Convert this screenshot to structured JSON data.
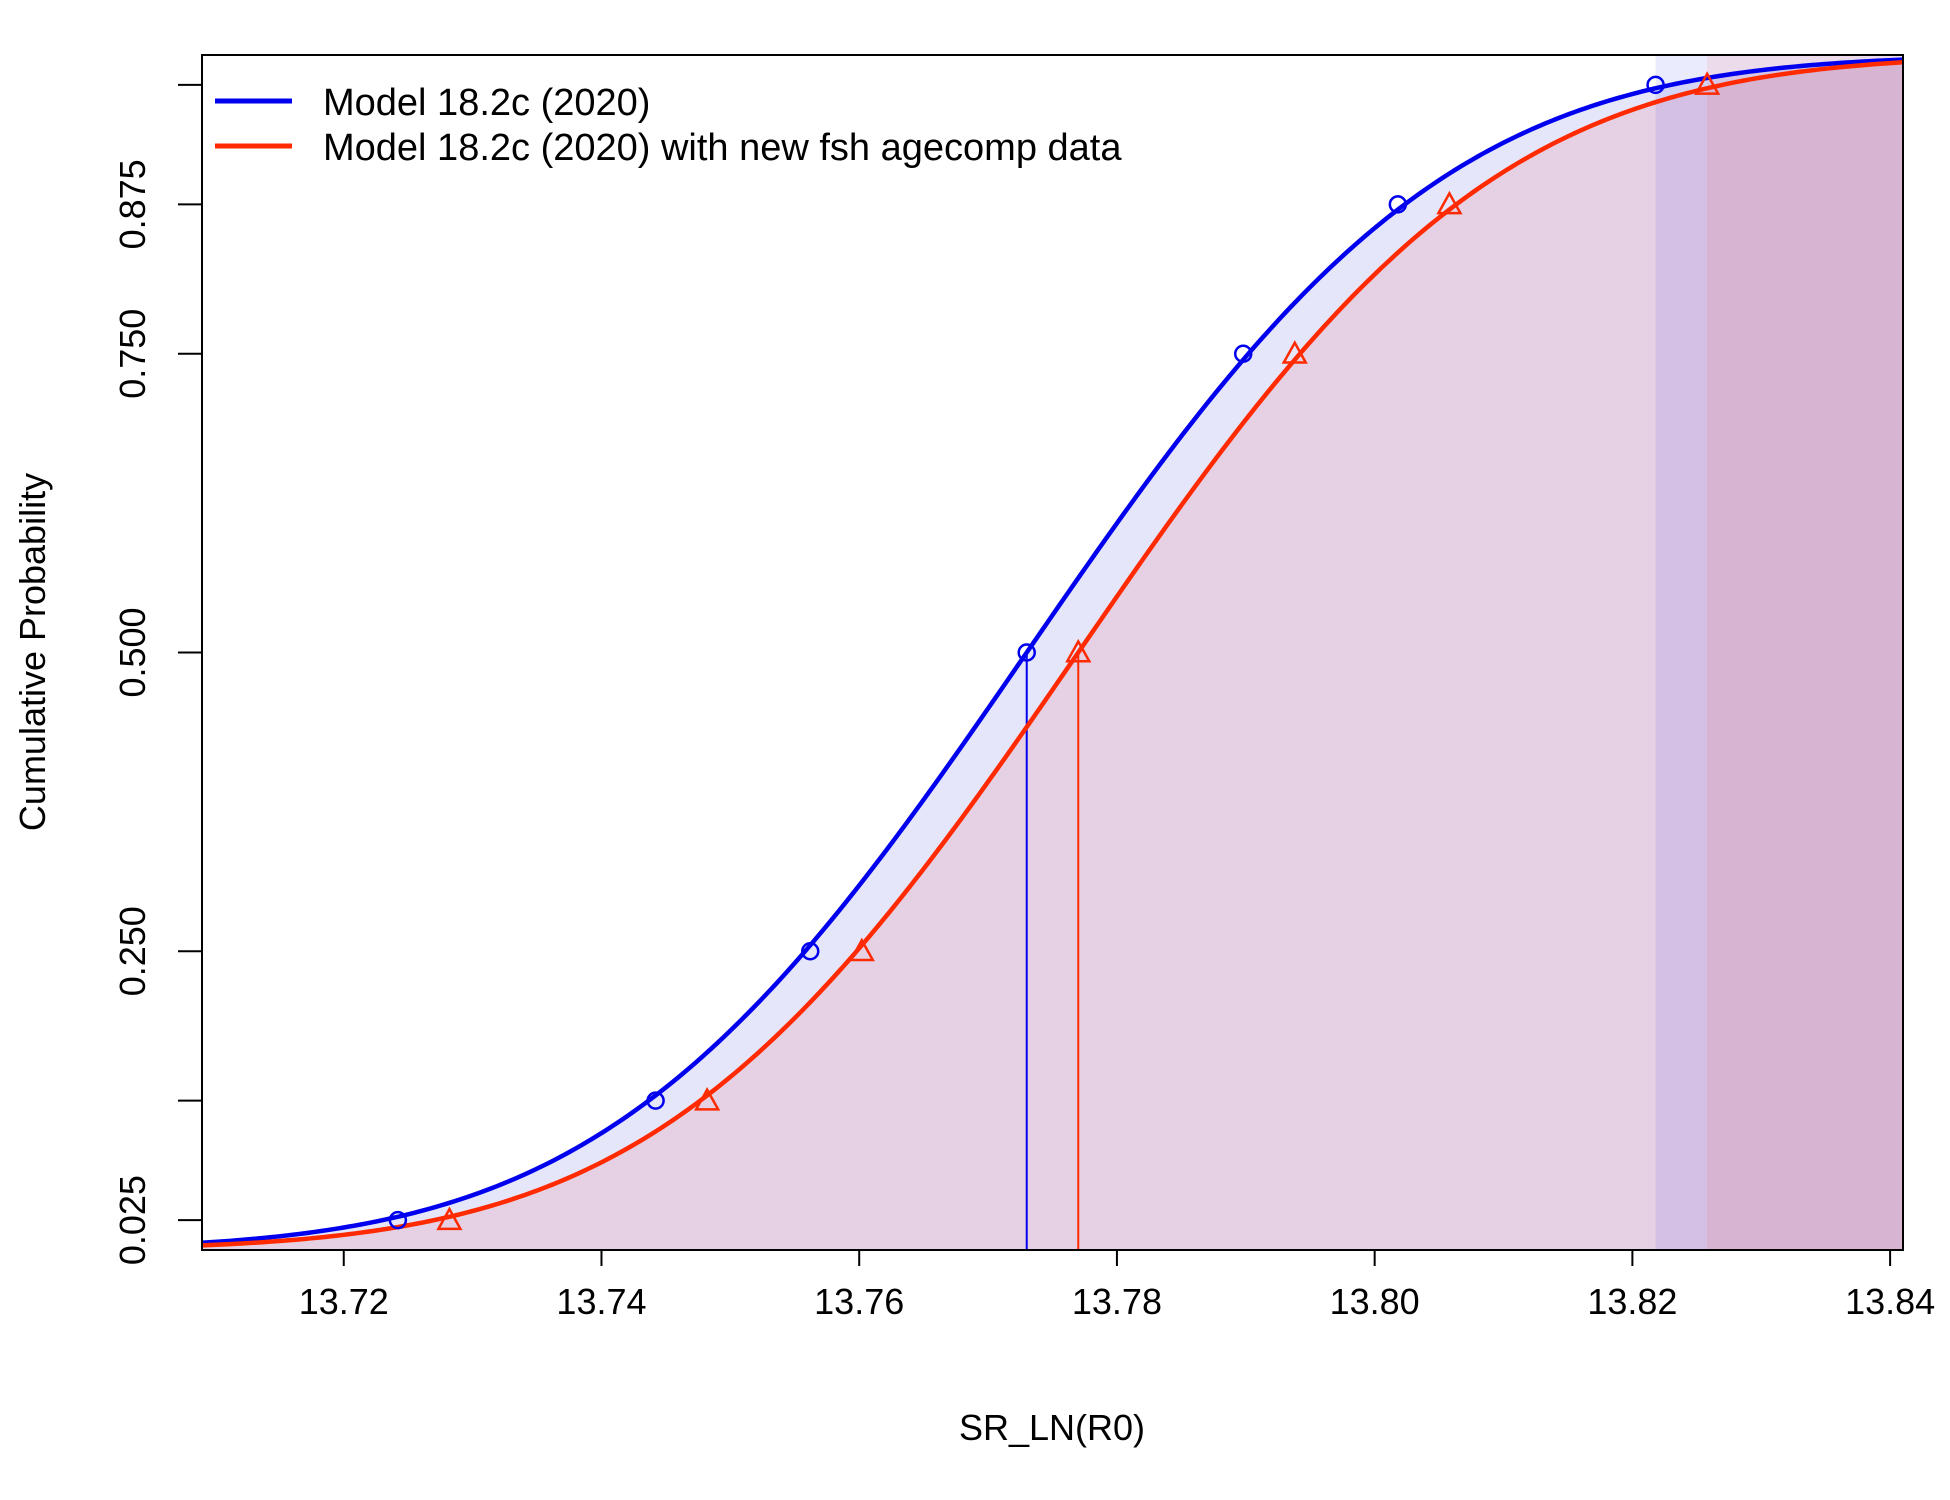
{
  "chart_data": {
    "type": "line",
    "xlabel": "SR_LN(R0)",
    "ylabel": "Cumulative Probability",
    "xlim": [
      13.709,
      13.841
    ],
    "ylim": [
      0.0,
      1.0
    ],
    "x_ticks": [
      13.72,
      13.74,
      13.76,
      13.78,
      13.8,
      13.82,
      13.84
    ],
    "x_tick_labels": [
      "13.72",
      "13.74",
      "13.76",
      "13.78",
      "13.80",
      "13.82",
      "13.84"
    ],
    "y_ticks": [
      0.025,
      0.125,
      0.25,
      0.5,
      0.75,
      0.875,
      0.975
    ],
    "y_tick_labels": [
      "0.025",
      "",
      "0.250",
      "0.500",
      "0.750",
      "0.875",
      ""
    ],
    "grid": false,
    "legend_position": "top-left",
    "series": [
      {
        "name": "Model 18.2c (2020)",
        "color": "#0000ee",
        "shade_color": "#c8c8f5",
        "marker": "circle",
        "median": 13.773,
        "sd": 0.0255,
        "marker_points": [
          {
            "x": 13.7242,
            "y": 0.025
          },
          {
            "x": 13.7442,
            "y": 0.125
          },
          {
            "x": 13.7562,
            "y": 0.25
          },
          {
            "x": 13.773,
            "y": 0.5
          },
          {
            "x": 13.7898,
            "y": 0.75
          },
          {
            "x": 13.8018,
            "y": 0.875
          },
          {
            "x": 13.8218,
            "y": 0.975
          }
        ]
      },
      {
        "name": "Model 18.2c (2020) with new fsh agecomp data",
        "color": "#ff2a00",
        "shade_color": "#e5b8c8",
        "marker": "triangle",
        "median": 13.777,
        "sd": 0.0255,
        "marker_points": [
          {
            "x": 13.7282,
            "y": 0.025
          },
          {
            "x": 13.7482,
            "y": 0.125
          },
          {
            "x": 13.7602,
            "y": 0.25
          },
          {
            "x": 13.777,
            "y": 0.5
          },
          {
            "x": 13.7938,
            "y": 0.75
          },
          {
            "x": 13.8058,
            "y": 0.875
          },
          {
            "x": 13.8258,
            "y": 0.975
          }
        ]
      }
    ]
  }
}
